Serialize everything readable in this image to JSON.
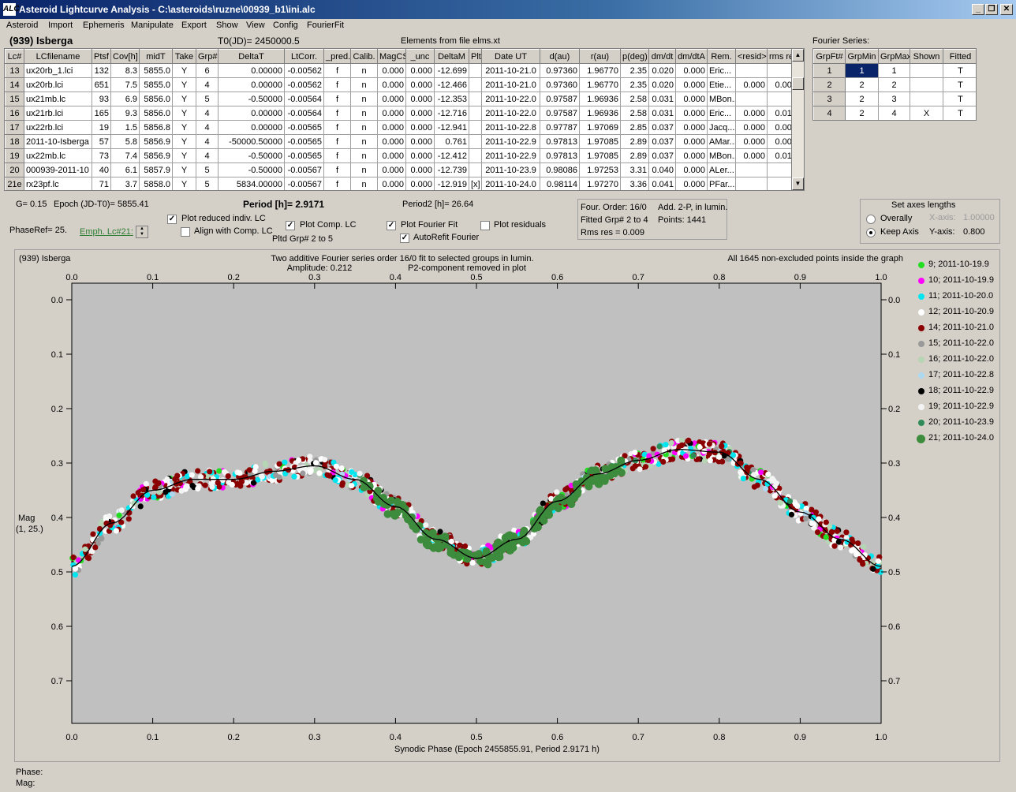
{
  "window": {
    "title": "Asteroid Lightcurve Analysis - C:\\asteroids\\ruzne\\00939_b1\\ini.alc",
    "icon_label": "ALC",
    "controls": [
      "_",
      "❐",
      "✕"
    ]
  },
  "menu": [
    "Asteroid",
    "Import",
    "Ephemeris",
    "Manipulate",
    "Export",
    "Show",
    "View",
    "Config",
    "FourierFit"
  ],
  "header": {
    "asteroid": "(939) Isberga",
    "t0": "T0(JD)= 2450000.5",
    "elements": "Elements from file elms.xt",
    "fourier_label": "Fourier Series:"
  },
  "lc_table": {
    "columns": [
      "Lc#",
      "LCfilename",
      "Ptsf",
      "Cov[h]",
      "midT",
      "Take",
      "Grp#",
      "DeltaT",
      "LtCorr.",
      "_pred.",
      "Calib.",
      "MagCS",
      "_unc",
      "DeltaM",
      "Plt",
      "Date UT",
      "d(au)",
      "r(au)",
      "p(deg)",
      "dm/dt",
      "dm/dtA",
      "Rem.",
      "<resid>",
      "rms res"
    ],
    "rows": [
      [
        "13",
        "ux20rb_1.lci",
        "132",
        "8.3",
        "5855.0",
        "Y",
        "6",
        "0.00000",
        "-0.00562",
        "f",
        "n",
        "0.000",
        "0.000",
        "-12.699",
        "",
        "2011-10-21.0",
        "0.97360",
        "1.96770",
        "2.35",
        "0.020",
        "0.000",
        "Eric...",
        "",
        ""
      ],
      [
        "14",
        "ux20rb.lci",
        "651",
        "7.5",
        "5855.0",
        "Y",
        "4",
        "0.00000",
        "-0.00562",
        "f",
        "n",
        "0.000",
        "0.000",
        "-12.466",
        "",
        "2011-10-21.0",
        "0.97360",
        "1.96770",
        "2.35",
        "0.020",
        "0.000",
        "Etie...",
        "0.000",
        "0.008"
      ],
      [
        "15",
        "ux21mb.lc",
        "93",
        "6.9",
        "5856.0",
        "Y",
        "5",
        "-0.50000",
        "-0.00564",
        "f",
        "n",
        "0.000",
        "0.000",
        "-12.353",
        "",
        "2011-10-22.0",
        "0.97587",
        "1.96936",
        "2.58",
        "0.031",
        "0.000",
        "MBon...",
        "",
        ""
      ],
      [
        "16",
        "ux21rb.lci",
        "165",
        "9.3",
        "5856.0",
        "Y",
        "4",
        "0.00000",
        "-0.00564",
        "f",
        "n",
        "0.000",
        "0.000",
        "-12.716",
        "",
        "2011-10-22.0",
        "0.97587",
        "1.96936",
        "2.58",
        "0.031",
        "0.000",
        "Eric...",
        "0.000",
        "0.012"
      ],
      [
        "17",
        "ux22rb.lci",
        "19",
        "1.5",
        "5856.8",
        "Y",
        "4",
        "0.00000",
        "-0.00565",
        "f",
        "n",
        "0.000",
        "0.000",
        "-12.941",
        "",
        "2011-10-22.8",
        "0.97787",
        "1.97069",
        "2.85",
        "0.037",
        "0.000",
        "Jacq...",
        "0.000",
        "0.006"
      ],
      [
        "18",
        "2011-10-Isberga",
        "57",
        "5.8",
        "5856.9",
        "Y",
        "4",
        "-50000.50000",
        "-0.00565",
        "f",
        "n",
        "0.000",
        "0.000",
        "0.761",
        "",
        "2011-10-22.9",
        "0.97813",
        "1.97085",
        "2.89",
        "0.037",
        "0.000",
        "AMar...",
        "0.000",
        "0.006"
      ],
      [
        "19",
        "ux22mb.lc",
        "73",
        "7.4",
        "5856.9",
        "Y",
        "4",
        "-0.50000",
        "-0.00565",
        "f",
        "n",
        "0.000",
        "0.000",
        "-12.412",
        "",
        "2011-10-22.9",
        "0.97813",
        "1.97085",
        "2.89",
        "0.037",
        "0.000",
        "MBon...",
        "0.000",
        "0.015"
      ],
      [
        "20",
        "000939-2011-10",
        "40",
        "6.1",
        "5857.9",
        "Y",
        "5",
        "-0.50000",
        "-0.00567",
        "f",
        "n",
        "0.000",
        "0.000",
        "-12.739",
        "",
        "2011-10-23.9",
        "0.98086",
        "1.97253",
        "3.31",
        "0.040",
        "0.000",
        "ALer...",
        "",
        ""
      ],
      [
        "21e",
        "rx23pf.lc",
        "71",
        "3.7",
        "5858.0",
        "Y",
        "5",
        "5834.00000",
        "-0.00567",
        "f",
        "n",
        "0.000",
        "0.000",
        "-12.919",
        "[x]",
        "2011-10-24.0",
        "0.98114",
        "1.97270",
        "3.36",
        "0.041",
        "0.000",
        "PFar...",
        "",
        ""
      ]
    ]
  },
  "fourier_table": {
    "columns": [
      "GrpFt#",
      "GrpMin",
      "GrpMax",
      "Shown",
      "Fitted"
    ],
    "rows": [
      [
        "1",
        "1",
        "1",
        "",
        "T"
      ],
      [
        "2",
        "2",
        "2",
        "",
        "T"
      ],
      [
        "3",
        "2",
        "3",
        "",
        "T"
      ],
      [
        "4",
        "2",
        "4",
        "X",
        "T"
      ]
    ]
  },
  "controls": {
    "g_text": "G= 0.15",
    "epoch_text": "Epoch (JD-T0)= 5855.41",
    "period_text": "Period [h]= 2.9171",
    "period2_text": "Period2 [h]= 26.64",
    "phaseref_text": "PhaseRef= 25.",
    "emph_link": "Emph. Lc#21:",
    "plot_reduced": "Plot reduced indiv. LC",
    "align_comp": "Align with Comp. LC",
    "plot_comp": "Plot Comp. LC",
    "pltd_grp": "Pltd Grp#  2  to   5",
    "plot_fourier": "Plot Fourier Fit",
    "autorefit": "AutoRefit Fourier",
    "plot_resid": "Plot residuals",
    "info1": "Four. Order: 16/0",
    "info2": "Add. 2-P, in lumin.",
    "info3": "Fitted Grp# 2 to 4",
    "info4": "Points: 1441",
    "info5": "Rms res      = 0.009",
    "axes_title": "Set axes lengths",
    "overally": "Overally",
    "keep_axis": "Keep Axis",
    "xaxis_lbl": "X-axis:",
    "xaxis_val": "1.00000",
    "yaxis_lbl": "Y-axis:",
    "yaxis_val": "0.800",
    "checks": {
      "plot_reduced": true,
      "align_comp": false,
      "plot_comp": true,
      "plot_fourier": true,
      "autorefit": true,
      "plot_resid": false
    }
  },
  "plot": {
    "corner_label": "(939) Isberga",
    "title1": "Two additive Fourier series order 16/0 fit to selected groups in lumin.",
    "title2": "Amplitude: 0.212",
    "title3": "P2-component removed in plot",
    "note": "All 1645 non-excluded points inside the graph",
    "ylabel1": "Mag",
    "ylabel2": "(1, 25.)",
    "xlabel": "Synodic Phase (Epoch 2455855.91, Period 2.9171 h)",
    "phase_lbl": "Phase:",
    "mag_lbl": "Mag:"
  },
  "chart_data": {
    "type": "scatter",
    "x_ticks": [
      "0.0",
      "0.1",
      "0.2",
      "0.3",
      "0.4",
      "0.5",
      "0.6",
      "0.7",
      "0.8",
      "0.9",
      "1.0"
    ],
    "y_ticks": [
      "0.0",
      "0.1",
      "0.2",
      "0.3",
      "0.4",
      "0.5",
      "0.6",
      "0.7"
    ],
    "xlim": [
      0,
      1
    ],
    "ylim": [
      0,
      0.78
    ],
    "y_inverted": true,
    "grid": false,
    "fourier_fit": {
      "x": [
        0.0,
        0.05,
        0.1,
        0.15,
        0.2,
        0.25,
        0.3,
        0.35,
        0.4,
        0.45,
        0.5,
        0.55,
        0.6,
        0.65,
        0.7,
        0.75,
        0.8,
        0.85,
        0.9,
        0.95,
        1.0
      ],
      "y": [
        0.49,
        0.41,
        0.35,
        0.33,
        0.33,
        0.315,
        0.305,
        0.33,
        0.38,
        0.44,
        0.475,
        0.44,
        0.37,
        0.32,
        0.295,
        0.275,
        0.28,
        0.33,
        0.39,
        0.44,
        0.49
      ]
    },
    "series": [
      {
        "name": "9; 2011-10-19.9",
        "color": "#22dd22"
      },
      {
        "name": "10; 2011-10-19.9",
        "color": "#ff00ff"
      },
      {
        "name": "11; 2011-10-20.0",
        "color": "#00e5ee"
      },
      {
        "name": "12; 2011-10-20.9",
        "color": "#ffffff"
      },
      {
        "name": "14; 2011-10-21.0",
        "color": "#8b0000"
      },
      {
        "name": "15; 2011-10-22.0",
        "color": "#9a9a9a"
      },
      {
        "name": "16; 2011-10-22.0",
        "color": "#b5d5b5"
      },
      {
        "name": "17; 2011-10-22.8",
        "color": "#add8f0"
      },
      {
        "name": "18; 2011-10-22.9",
        "color": "#000000"
      },
      {
        "name": "19; 2011-10-22.9",
        "color": "#f4f4f4"
      },
      {
        "name": "20; 2011-10-23.9",
        "color": "#2e8b57"
      },
      {
        "name": "21; 2011-10-24.0",
        "color": "#3d8b3d"
      }
    ],
    "emphasized": {
      "name": "21; 2011-10-24.0",
      "phase_range": [
        0.36,
        0.68
      ]
    }
  }
}
